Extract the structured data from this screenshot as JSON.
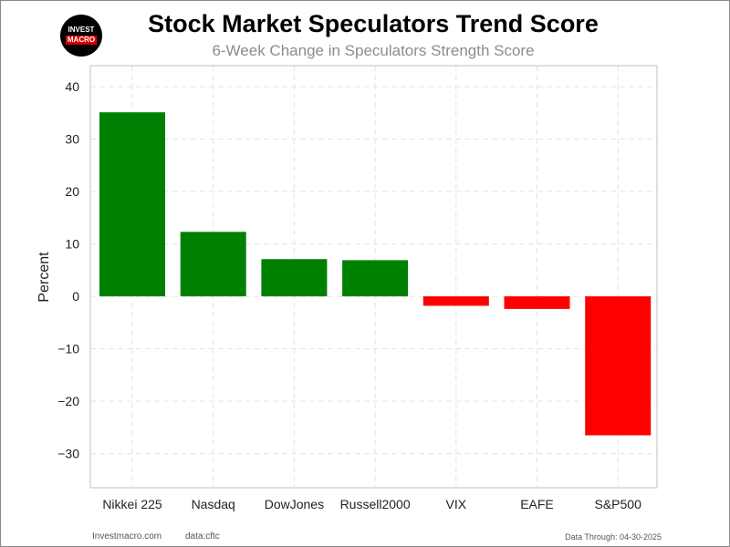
{
  "logo": {
    "top_text": "INVEST",
    "bottom_text": "MACRO"
  },
  "chart_data": {
    "type": "bar",
    "title": "Stock Market Speculators Trend Score",
    "subtitle": "6-Week Change in Speculators Strength Score",
    "xlabel": "",
    "ylabel": "Percent",
    "categories": [
      "Nikkei 225",
      "Nasdaq",
      "DowJones",
      "Russell2000",
      "VIX",
      "EAFE",
      "S&P500"
    ],
    "values": [
      35.1,
      12.3,
      7.1,
      6.9,
      -1.8,
      -2.4,
      -26.5
    ],
    "colors": [
      "#008000",
      "#008000",
      "#008000",
      "#008000",
      "#ff0000",
      "#ff0000",
      "#ff0000"
    ],
    "ylim": [
      -36.5,
      44
    ],
    "yticks": [
      -30,
      -20,
      -10,
      0,
      10,
      20,
      30,
      40
    ],
    "ytick_labels": [
      "−30",
      "−20",
      "−10",
      "0",
      "10",
      "20",
      "30",
      "40"
    ],
    "grid": true,
    "positive_color": "#008000",
    "negative_color": "#ff0000"
  },
  "footer": {
    "site": "Investmacro.com",
    "source": "data:cftc",
    "date": "Data Through: 04-30-2025"
  }
}
